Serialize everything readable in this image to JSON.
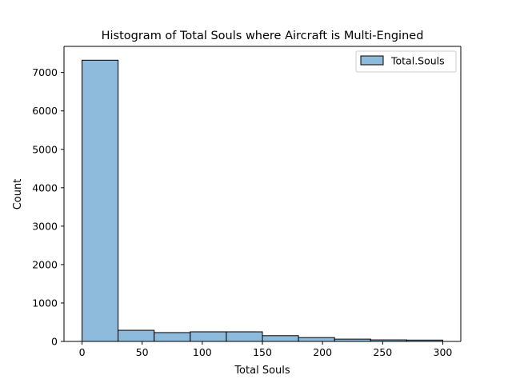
{
  "chart_data": {
    "type": "bar",
    "title": "Histogram of Total Souls where Aircraft is Multi-Engined",
    "xlabel": "Total Souls",
    "ylabel": "Count",
    "xlim": [
      -15,
      315
    ],
    "ylim": [
      0,
      7680
    ],
    "xticks": [
      0,
      50,
      100,
      150,
      200,
      250,
      300
    ],
    "yticks": [
      0,
      1000,
      2000,
      3000,
      4000,
      5000,
      6000,
      7000
    ],
    "legend": {
      "placement": "top-right"
    },
    "colors": {
      "fill": "#8ebbdc",
      "edge": "#000000"
    },
    "series": [
      {
        "name": "Total.Souls",
        "bins": [
          {
            "x0": 0,
            "x1": 30,
            "count": 7320
          },
          {
            "x0": 30,
            "x1": 60,
            "count": 290
          },
          {
            "x0": 60,
            "x1": 90,
            "count": 230
          },
          {
            "x0": 90,
            "x1": 120,
            "count": 250
          },
          {
            "x0": 120,
            "x1": 150,
            "count": 250
          },
          {
            "x0": 150,
            "x1": 180,
            "count": 150
          },
          {
            "x0": 180,
            "x1": 210,
            "count": 100
          },
          {
            "x0": 210,
            "x1": 240,
            "count": 60
          },
          {
            "x0": 240,
            "x1": 270,
            "count": 40
          },
          {
            "x0": 270,
            "x1": 300,
            "count": 35
          }
        ]
      }
    ]
  }
}
